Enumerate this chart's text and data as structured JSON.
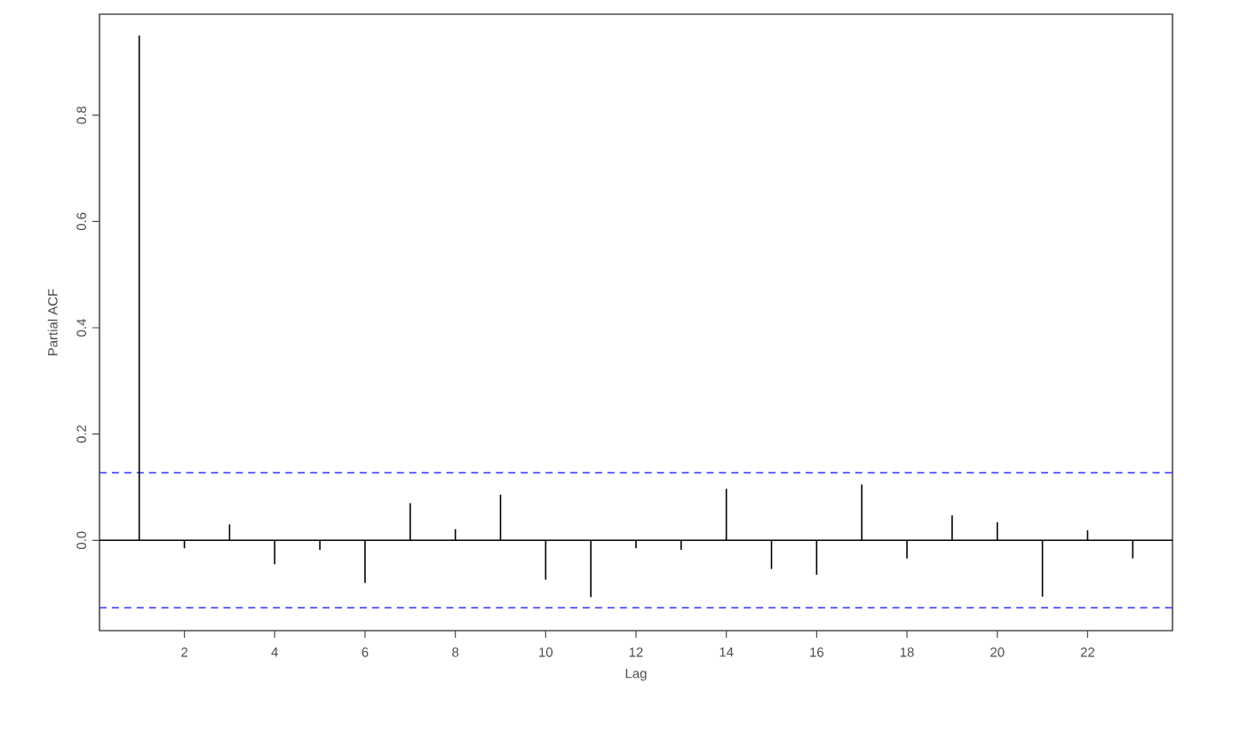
{
  "chart_data": {
    "type": "bar",
    "xlabel": "Lag",
    "ylabel": "Partial ACF",
    "x": [
      1,
      2,
      3,
      4,
      5,
      6,
      7,
      8,
      9,
      10,
      11,
      12,
      13,
      14,
      15,
      16,
      17,
      18,
      19,
      20,
      21,
      22,
      23
    ],
    "values": [
      0.95,
      -0.015,
      0.03,
      -0.045,
      -0.018,
      -0.08,
      0.07,
      0.021,
      0.086,
      -0.074,
      -0.107,
      -0.015,
      -0.018,
      0.097,
      -0.054,
      -0.065,
      0.105,
      -0.034,
      0.047,
      0.034,
      -0.106,
      0.019,
      -0.034
    ],
    "color": "#000000",
    "xlim": [
      0.12,
      23.88
    ],
    "ylim": [
      -0.17,
      0.99
    ],
    "xticks": [
      2,
      4,
      6,
      8,
      10,
      12,
      14,
      16,
      18,
      20,
      22
    ],
    "yticks": [
      {
        "value": 0,
        "label": "0.0"
      },
      {
        "value": 0.2,
        "label": "0.2"
      },
      {
        "value": 0.4,
        "label": "0.4"
      },
      {
        "value": 0.6,
        "label": "0.6"
      },
      {
        "value": 0.8,
        "label": "0.8"
      }
    ],
    "ref_lines": [
      {
        "axis": "y",
        "value": 0,
        "color": "#000000",
        "line_style": "solid"
      },
      {
        "axis": "y",
        "value": 0.127,
        "color": "#3333ff",
        "line_style": "dashed"
      },
      {
        "axis": "y",
        "value": -0.127,
        "color": "#3333ff",
        "line_style": "dashed"
      }
    ]
  }
}
